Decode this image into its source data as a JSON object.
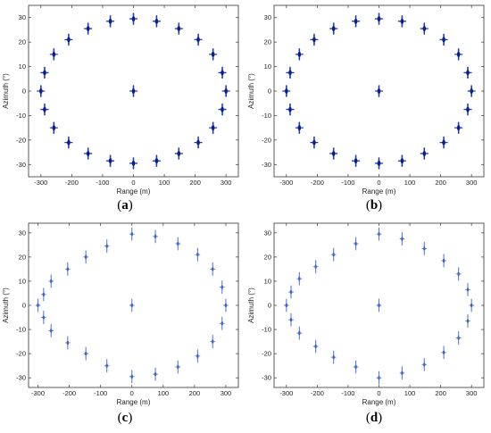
{
  "panel_labels": {
    "a": "a",
    "b": "b",
    "c": "c",
    "d": "d"
  },
  "colors": {
    "accent": "#1f3fbf",
    "accent_light": "#5a7fd8",
    "axis": "#333333"
  },
  "chart_data": [
    {
      "type": "scatter",
      "panel": "a",
      "xlabel": "Range (m)",
      "ylabel": "Azimuth (°)",
      "xlim": [
        -340,
        340
      ],
      "ylim": [
        -35,
        35
      ],
      "xticks": [
        -300,
        -200,
        -100,
        0,
        100,
        200,
        300
      ],
      "yticks": [
        -30,
        -20,
        -10,
        0,
        10,
        20,
        30
      ],
      "style": "dark-cross",
      "points": [
        {
          "x": 0,
          "y": 29.5
        },
        {
          "x": 75,
          "y": 28.5
        },
        {
          "x": 147,
          "y": 25.5
        },
        {
          "x": 210,
          "y": 21
        },
        {
          "x": 258,
          "y": 15
        },
        {
          "x": 288,
          "y": 7.5
        },
        {
          "x": 300,
          "y": 0
        },
        {
          "x": 288,
          "y": -7.5
        },
        {
          "x": 258,
          "y": -15
        },
        {
          "x": 210,
          "y": -21
        },
        {
          "x": 147,
          "y": -25.5
        },
        {
          "x": 75,
          "y": -28.5
        },
        {
          "x": 0,
          "y": -29.5
        },
        {
          "x": -75,
          "y": -28.5
        },
        {
          "x": -147,
          "y": -25.5
        },
        {
          "x": -210,
          "y": -21
        },
        {
          "x": -258,
          "y": -15
        },
        {
          "x": -288,
          "y": -7.5
        },
        {
          "x": -300,
          "y": 0
        },
        {
          "x": -288,
          "y": 7.5
        },
        {
          "x": -258,
          "y": 15
        },
        {
          "x": -210,
          "y": 21
        },
        {
          "x": -147,
          "y": 25.5
        },
        {
          "x": -75,
          "y": 28.5
        },
        {
          "x": 0,
          "y": 0
        }
      ]
    },
    {
      "type": "scatter",
      "panel": "b",
      "xlabel": "Range (m)",
      "ylabel": "Azimuth (°)",
      "xlim": [
        -340,
        340
      ],
      "ylim": [
        -35,
        35
      ],
      "xticks": [
        -300,
        -200,
        -100,
        0,
        100,
        200,
        300
      ],
      "yticks": [
        -30,
        -20,
        -10,
        0,
        10,
        20,
        30
      ],
      "style": "dark-cross",
      "points": [
        {
          "x": 0,
          "y": 29.5
        },
        {
          "x": 75,
          "y": 28.5
        },
        {
          "x": 147,
          "y": 25.5
        },
        {
          "x": 210,
          "y": 21
        },
        {
          "x": 258,
          "y": 15
        },
        {
          "x": 288,
          "y": 7.5
        },
        {
          "x": 300,
          "y": 0
        },
        {
          "x": 288,
          "y": -7.5
        },
        {
          "x": 258,
          "y": -15
        },
        {
          "x": 210,
          "y": -21
        },
        {
          "x": 147,
          "y": -25.5
        },
        {
          "x": 75,
          "y": -28.5
        },
        {
          "x": 0,
          "y": -29.5
        },
        {
          "x": -75,
          "y": -28.5
        },
        {
          "x": -147,
          "y": -25.5
        },
        {
          "x": -210,
          "y": -21
        },
        {
          "x": -258,
          "y": -15
        },
        {
          "x": -288,
          "y": -7.5
        },
        {
          "x": -300,
          "y": 0
        },
        {
          "x": -288,
          "y": 7.5
        },
        {
          "x": -258,
          "y": 15
        },
        {
          "x": -210,
          "y": 21
        },
        {
          "x": -147,
          "y": 25.5
        },
        {
          "x": -75,
          "y": 28.5
        },
        {
          "x": 0,
          "y": 0
        }
      ]
    },
    {
      "type": "scatter",
      "panel": "c",
      "xlabel": "Range (m)",
      "ylabel": "Azimuth (°)",
      "xlim": [
        -330,
        340
      ],
      "ylim": [
        -34,
        34
      ],
      "xticks": [
        -300,
        -200,
        -100,
        0,
        100,
        200,
        300
      ],
      "yticks": [
        -30,
        -20,
        -10,
        0,
        10,
        20,
        30
      ],
      "style": "light-cross",
      "points": [
        {
          "x": 0,
          "y": 29.5
        },
        {
          "x": 75,
          "y": 28.5
        },
        {
          "x": 147,
          "y": 25.5
        },
        {
          "x": 210,
          "y": 21
        },
        {
          "x": 258,
          "y": 15
        },
        {
          "x": 288,
          "y": 7.5
        },
        {
          "x": 300,
          "y": 0
        },
        {
          "x": 288,
          "y": -7.5
        },
        {
          "x": 258,
          "y": -15
        },
        {
          "x": 210,
          "y": -21
        },
        {
          "x": 147,
          "y": -25.5
        },
        {
          "x": 75,
          "y": -28.5
        },
        {
          "x": 0,
          "y": -29.5
        },
        {
          "x": -80,
          "y": -25
        },
        {
          "x": -147,
          "y": -20
        },
        {
          "x": -205,
          "y": -15.5
        },
        {
          "x": -258,
          "y": -10.5
        },
        {
          "x": -282,
          "y": -5
        },
        {
          "x": -300,
          "y": 0
        },
        {
          "x": -282,
          "y": 4.5
        },
        {
          "x": -258,
          "y": 10
        },
        {
          "x": -205,
          "y": 15
        },
        {
          "x": -147,
          "y": 20
        },
        {
          "x": -80,
          "y": 24.5
        },
        {
          "x": 0,
          "y": 0
        }
      ]
    },
    {
      "type": "scatter",
      "panel": "d",
      "xlabel": "Range (m)",
      "ylabel": "Azimuth (°)",
      "xlim": [
        -340,
        340
      ],
      "ylim": [
        -34,
        34
      ],
      "xticks": [
        -300,
        -200,
        -100,
        0,
        100,
        200,
        300
      ],
      "yticks": [
        -30,
        -20,
        -10,
        0,
        10,
        20,
        30
      ],
      "style": "light-cross",
      "points": [
        {
          "x": 0,
          "y": 29.5
        },
        {
          "x": 75,
          "y": 27.5
        },
        {
          "x": 147,
          "y": 23.5
        },
        {
          "x": 210,
          "y": 18.5
        },
        {
          "x": 258,
          "y": 13
        },
        {
          "x": 288,
          "y": 6.5
        },
        {
          "x": 300,
          "y": 0
        },
        {
          "x": 288,
          "y": -6.5
        },
        {
          "x": 258,
          "y": -13.5
        },
        {
          "x": 210,
          "y": -19.5
        },
        {
          "x": 147,
          "y": -24.5
        },
        {
          "x": 75,
          "y": -28
        },
        {
          "x": 0,
          "y": -30
        },
        {
          "x": -75,
          "y": -25.5
        },
        {
          "x": -147,
          "y": -21.5
        },
        {
          "x": -205,
          "y": -17
        },
        {
          "x": -258,
          "y": -11.5
        },
        {
          "x": -285,
          "y": -6
        },
        {
          "x": -300,
          "y": 0
        },
        {
          "x": -285,
          "y": 5.5
        },
        {
          "x": -258,
          "y": 11
        },
        {
          "x": -205,
          "y": 16
        },
        {
          "x": -147,
          "y": 21
        },
        {
          "x": -75,
          "y": 25.5
        },
        {
          "x": 0,
          "y": 0
        }
      ]
    }
  ]
}
